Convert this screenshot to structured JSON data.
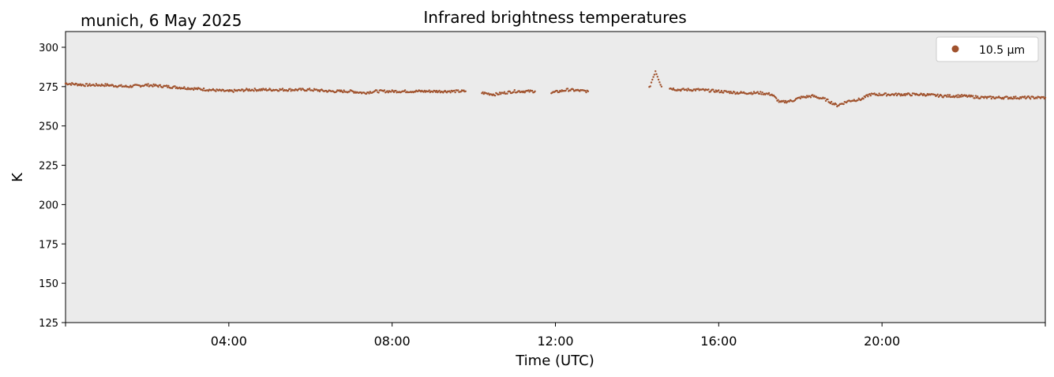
{
  "chart_data": {
    "type": "scatter",
    "title": "Infrared brightness temperatures",
    "subtitle": "munich, 6 May 2025",
    "xlabel": "Time (UTC)",
    "ylabel": "K",
    "x_unit": "hours UTC",
    "xlim": [
      0,
      24
    ],
    "ylim": [
      125,
      310
    ],
    "x_ticks": [
      {
        "value": 4,
        "label": "04:00"
      },
      {
        "value": 8,
        "label": "08:00"
      },
      {
        "value": 12,
        "label": "12:00"
      },
      {
        "value": 16,
        "label": "16:00"
      },
      {
        "value": 20,
        "label": "20:00"
      }
    ],
    "y_ticks": [
      125,
      150,
      175,
      200,
      225,
      250,
      275,
      300
    ],
    "grid": false,
    "background_color": "#ebebeb",
    "legend_position": "top-right",
    "series": [
      {
        "name": "10.5 µm",
        "color": "#a0522d",
        "segments": [
          {
            "x": [
              0.0,
              0.5,
              1.0,
              1.5,
              2.0,
              2.5,
              3.0,
              3.5,
              4.0,
              4.5,
              5.0,
              5.5,
              6.0,
              6.5,
              7.0,
              7.3,
              7.6,
              8.0,
              8.5,
              9.0,
              9.5,
              9.8
            ],
            "y": [
              277,
              276,
              276,
              275,
              276,
              275,
              274,
              273,
              272,
              273,
              273,
              273,
              273,
              272,
              272,
              271,
              272,
              272,
              272,
              272,
              272,
              272
            ]
          },
          {
            "x": [
              10.2,
              10.5,
              11.0,
              11.5
            ],
            "y": [
              271,
              270,
              272,
              272
            ]
          },
          {
            "x": [
              11.9,
              12.3,
              12.8
            ],
            "y": [
              271,
              273,
              272
            ]
          },
          {
            "x": [
              14.3,
              14.45,
              14.6
            ],
            "y": [
              274,
              285,
              275
            ]
          },
          {
            "x": [
              14.8,
              15.0,
              15.5,
              16.0,
              16.5,
              17.0,
              17.3,
              17.5,
              17.8,
              18.0,
              18.3,
              18.6,
              18.9,
              19.2,
              19.5,
              19.7,
              20.0,
              20.5,
              21.0,
              21.5,
              22.0,
              22.5,
              23.0,
              23.5,
              24.0
            ],
            "y": [
              274,
              273,
              273,
              272,
              271,
              271,
              270,
              265,
              266,
              268,
              269,
              267,
              263,
              266,
              267,
              270,
              270,
              270,
              270,
              269,
              269,
              268,
              268,
              268,
              268
            ]
          }
        ]
      }
    ]
  }
}
